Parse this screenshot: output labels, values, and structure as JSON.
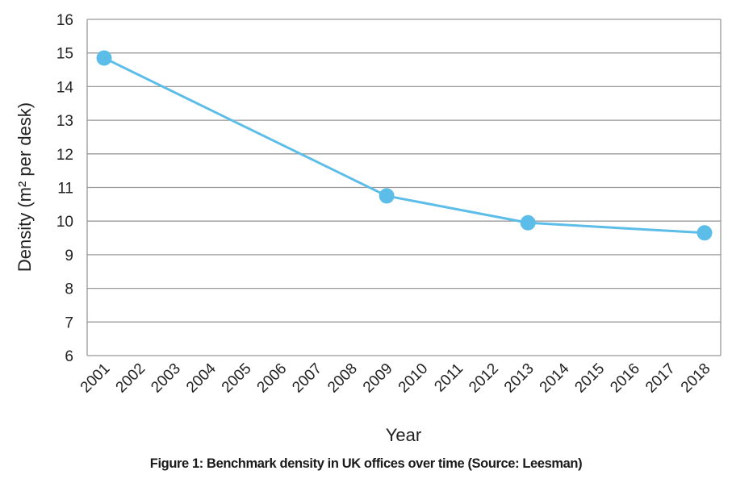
{
  "chart_data": {
    "type": "line",
    "categories": [
      "2001",
      "2002",
      "2003",
      "2004",
      "2005",
      "2006",
      "2007",
      "2008",
      "2009",
      "2010",
      "2011",
      "2012",
      "2013",
      "2014",
      "2015",
      "2016",
      "2017",
      "2018"
    ],
    "points": [
      {
        "x": "2001",
        "y": 14.85
      },
      {
        "x": "2009",
        "y": 10.75
      },
      {
        "x": "2013",
        "y": 9.95
      },
      {
        "x": "2018",
        "y": 9.65
      }
    ],
    "xlabel": "Year",
    "ylabel": "Density (m² per desk)",
    "ylim": [
      6,
      16
    ],
    "yticks": [
      6,
      7,
      8,
      9,
      10,
      11,
      12,
      13,
      14,
      15,
      16
    ],
    "grid": true,
    "series_color": "#5bbde8",
    "grid_color": "#999999"
  },
  "caption": "Figure 1: Benchmark density in UK offices over time (Source: Leesman)"
}
